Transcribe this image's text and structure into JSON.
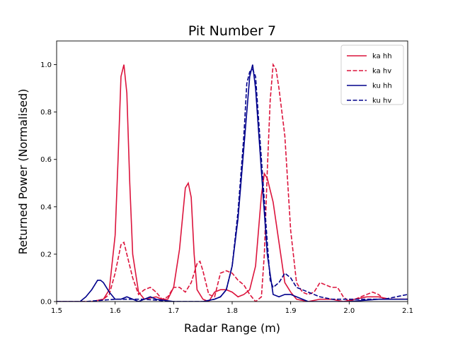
{
  "chart_data": {
    "type": "line",
    "title": "Pit Number 7",
    "xlabel": "Radar Range (m)",
    "ylabel": "Returned Power (Normalised)",
    "xlim": [
      1.5,
      2.1
    ],
    "ylim": [
      0.0,
      1.1
    ],
    "xticks": [
      "1.5",
      "1.6",
      "1.7",
      "1.8",
      "1.9",
      "2.0",
      "2.1"
    ],
    "yticks": [
      "0.0",
      "0.2",
      "0.4",
      "0.6",
      "0.8",
      "1.0"
    ],
    "grid": false,
    "legend_position": "top-right",
    "series": [
      {
        "name": "ka hh",
        "color": "#dc143c",
        "dash": "solid",
        "points": [
          [
            1.5,
            0
          ],
          [
            1.56,
            0
          ],
          [
            1.58,
            0.01
          ],
          [
            1.59,
            0.05
          ],
          [
            1.6,
            0.28
          ],
          [
            1.605,
            0.6
          ],
          [
            1.61,
            0.95
          ],
          [
            1.615,
            1.0
          ],
          [
            1.62,
            0.88
          ],
          [
            1.625,
            0.5
          ],
          [
            1.63,
            0.2
          ],
          [
            1.64,
            0.04
          ],
          [
            1.65,
            0.01
          ],
          [
            1.67,
            0.02
          ],
          [
            1.68,
            0.01
          ],
          [
            1.69,
            0.01
          ],
          [
            1.7,
            0.06
          ],
          [
            1.71,
            0.22
          ],
          [
            1.72,
            0.48
          ],
          [
            1.725,
            0.5
          ],
          [
            1.73,
            0.44
          ],
          [
            1.735,
            0.2
          ],
          [
            1.74,
            0.05
          ],
          [
            1.75,
            0.01
          ],
          [
            1.76,
            0.0
          ],
          [
            1.77,
            0.04
          ],
          [
            1.78,
            0.05
          ],
          [
            1.79,
            0.05
          ],
          [
            1.8,
            0.04
          ],
          [
            1.81,
            0.02
          ],
          [
            1.82,
            0.03
          ],
          [
            1.83,
            0.05
          ],
          [
            1.84,
            0.15
          ],
          [
            1.85,
            0.45
          ],
          [
            1.855,
            0.54
          ],
          [
            1.86,
            0.52
          ],
          [
            1.87,
            0.42
          ],
          [
            1.88,
            0.25
          ],
          [
            1.89,
            0.08
          ],
          [
            1.9,
            0.04
          ],
          [
            1.91,
            0.01
          ],
          [
            1.93,
            0.0
          ],
          [
            1.95,
            0.01
          ],
          [
            1.97,
            0.01
          ],
          [
            1.99,
            0.0
          ],
          [
            2.01,
            0.01
          ],
          [
            2.03,
            0.02
          ],
          [
            2.05,
            0.02
          ],
          [
            2.07,
            0.01
          ],
          [
            2.09,
            0.01
          ],
          [
            2.1,
            0.01
          ]
        ]
      },
      {
        "name": "ka hv",
        "color": "#dc143c",
        "dash": "dashed",
        "points": [
          [
            1.5,
            0
          ],
          [
            1.56,
            0
          ],
          [
            1.58,
            0.01
          ],
          [
            1.59,
            0.03
          ],
          [
            1.6,
            0.12
          ],
          [
            1.61,
            0.24
          ],
          [
            1.615,
            0.25
          ],
          [
            1.62,
            0.2
          ],
          [
            1.63,
            0.1
          ],
          [
            1.64,
            0.03
          ],
          [
            1.65,
            0.05
          ],
          [
            1.66,
            0.06
          ],
          [
            1.67,
            0.04
          ],
          [
            1.68,
            0.01
          ],
          [
            1.69,
            0.02
          ],
          [
            1.7,
            0.06
          ],
          [
            1.71,
            0.06
          ],
          [
            1.72,
            0.04
          ],
          [
            1.73,
            0.08
          ],
          [
            1.74,
            0.16
          ],
          [
            1.745,
            0.17
          ],
          [
            1.75,
            0.13
          ],
          [
            1.76,
            0.03
          ],
          [
            1.77,
            0.02
          ],
          [
            1.78,
            0.12
          ],
          [
            1.79,
            0.13
          ],
          [
            1.8,
            0.12
          ],
          [
            1.81,
            0.09
          ],
          [
            1.82,
            0.07
          ],
          [
            1.83,
            0.03
          ],
          [
            1.84,
            0.0
          ],
          [
            1.85,
            0.02
          ],
          [
            1.855,
            0.2
          ],
          [
            1.86,
            0.55
          ],
          [
            1.865,
            0.85
          ],
          [
            1.87,
            1.0
          ],
          [
            1.875,
            0.98
          ],
          [
            1.88,
            0.9
          ],
          [
            1.89,
            0.7
          ],
          [
            1.9,
            0.3
          ],
          [
            1.91,
            0.08
          ],
          [
            1.92,
            0.04
          ],
          [
            1.93,
            0.03
          ],
          [
            1.94,
            0.04
          ],
          [
            1.95,
            0.08
          ],
          [
            1.96,
            0.07
          ],
          [
            1.97,
            0.06
          ],
          [
            1.98,
            0.06
          ],
          [
            1.99,
            0.02
          ],
          [
            2.0,
            0.0
          ],
          [
            2.01,
            0.01
          ],
          [
            2.03,
            0.03
          ],
          [
            2.04,
            0.04
          ],
          [
            2.05,
            0.03
          ],
          [
            2.06,
            0.01
          ],
          [
            2.08,
            0.01
          ],
          [
            2.1,
            0.01
          ]
        ]
      },
      {
        "name": "ku hh",
        "color": "#00008b",
        "dash": "solid",
        "points": [
          [
            1.5,
            0
          ],
          [
            1.54,
            0
          ],
          [
            1.55,
            0.02
          ],
          [
            1.56,
            0.05
          ],
          [
            1.57,
            0.09
          ],
          [
            1.575,
            0.09
          ],
          [
            1.58,
            0.08
          ],
          [
            1.59,
            0.04
          ],
          [
            1.6,
            0.01
          ],
          [
            1.61,
            0.01
          ],
          [
            1.62,
            0.02
          ],
          [
            1.63,
            0.01
          ],
          [
            1.64,
            0.0
          ],
          [
            1.66,
            0.02
          ],
          [
            1.67,
            0.01
          ],
          [
            1.7,
            0.0
          ],
          [
            1.75,
            0.0
          ],
          [
            1.77,
            0.01
          ],
          [
            1.78,
            0.02
          ],
          [
            1.79,
            0.05
          ],
          [
            1.8,
            0.15
          ],
          [
            1.81,
            0.35
          ],
          [
            1.82,
            0.65
          ],
          [
            1.83,
            0.95
          ],
          [
            1.835,
            1.0
          ],
          [
            1.84,
            0.9
          ],
          [
            1.85,
            0.55
          ],
          [
            1.86,
            0.2
          ],
          [
            1.87,
            0.03
          ],
          [
            1.88,
            0.02
          ],
          [
            1.89,
            0.03
          ],
          [
            1.9,
            0.03
          ],
          [
            1.91,
            0.02
          ],
          [
            1.93,
            0.0
          ],
          [
            2.0,
            0.0
          ],
          [
            2.05,
            0.01
          ],
          [
            2.1,
            0.01
          ]
        ]
      },
      {
        "name": "ku hv",
        "color": "#00008b",
        "dash": "dashed",
        "points": [
          [
            1.5,
            0
          ],
          [
            1.55,
            0
          ],
          [
            1.6,
            0.01
          ],
          [
            1.65,
            0.01
          ],
          [
            1.7,
            0.0
          ],
          [
            1.75,
            0.0
          ],
          [
            1.77,
            0.01
          ],
          [
            1.78,
            0.02
          ],
          [
            1.79,
            0.05
          ],
          [
            1.8,
            0.15
          ],
          [
            1.81,
            0.38
          ],
          [
            1.82,
            0.7
          ],
          [
            1.825,
            0.92
          ],
          [
            1.83,
            0.97
          ],
          [
            1.835,
            0.98
          ],
          [
            1.84,
            0.95
          ],
          [
            1.85,
            0.6
          ],
          [
            1.86,
            0.25
          ],
          [
            1.865,
            0.09
          ],
          [
            1.87,
            0.06
          ],
          [
            1.88,
            0.08
          ],
          [
            1.89,
            0.12
          ],
          [
            1.9,
            0.1
          ],
          [
            1.91,
            0.06
          ],
          [
            1.92,
            0.05
          ],
          [
            1.93,
            0.04
          ],
          [
            1.94,
            0.03
          ],
          [
            1.95,
            0.02
          ],
          [
            1.97,
            0.01
          ],
          [
            2.0,
            0.01
          ],
          [
            2.03,
            0.01
          ],
          [
            2.06,
            0.01
          ],
          [
            2.08,
            0.02
          ],
          [
            2.1,
            0.03
          ]
        ]
      }
    ]
  }
}
